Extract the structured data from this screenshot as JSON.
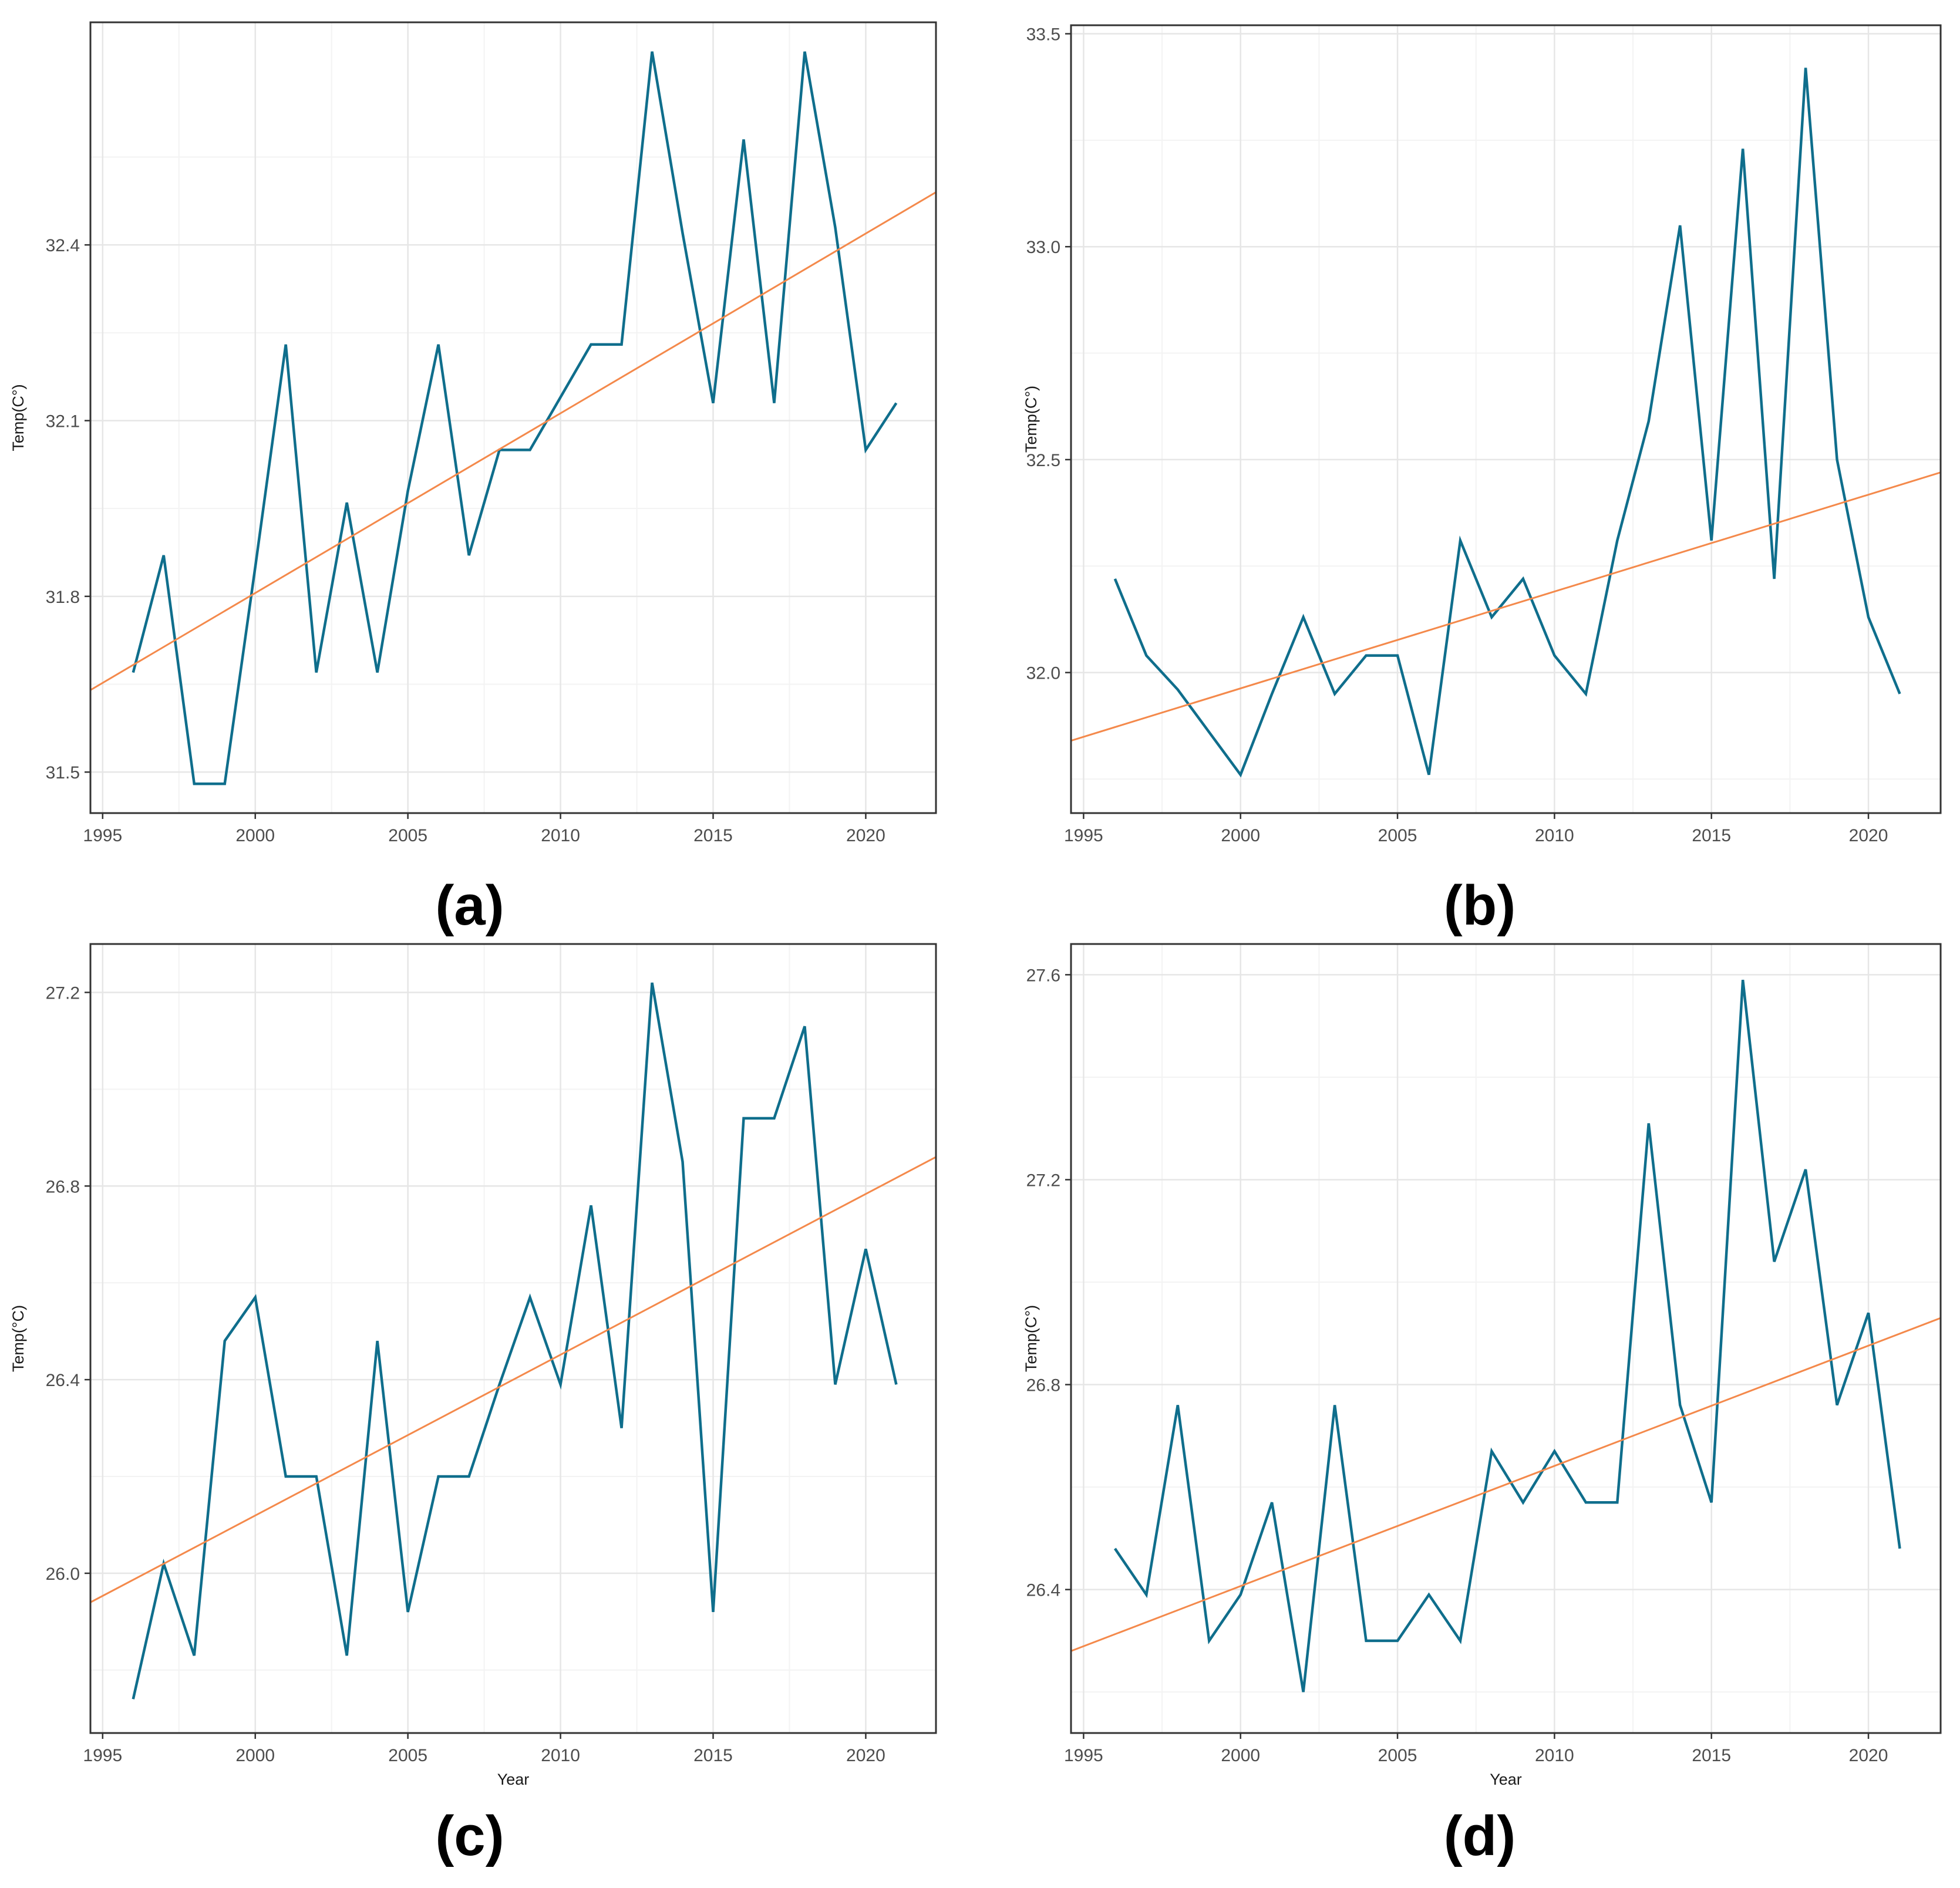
{
  "figure": {
    "colors": {
      "series_line": "#0f6e8c",
      "trend_line": "#f4894b",
      "panel_border": "#333333",
      "grid_major": "#e6e6e6",
      "grid_minor": "#f3f3f3",
      "background": "#ffffff"
    }
  },
  "chart_data": [
    {
      "panel": "(a)",
      "type": "line",
      "title": "",
      "xlabel": "",
      "ylabel": "Temp(C°)",
      "xlim": [
        1994.6,
        2022.3
      ],
      "ylim": [
        31.43,
        32.78
      ],
      "xticks": [
        1995,
        2000,
        2005,
        2010,
        2015,
        2020
      ],
      "yticks": [
        31.5,
        31.8,
        32.1,
        32.4
      ],
      "ytick_labels": [
        "31.5",
        "31.8",
        "32.1",
        "32.4"
      ],
      "grid": true,
      "series": [
        {
          "name": "Temp",
          "x": [
            1996,
            1997,
            1998,
            1999,
            2000,
            2001,
            2002,
            2003,
            2004,
            2005,
            2006,
            2007,
            2008,
            2009,
            2010,
            2011,
            2012,
            2013,
            2014,
            2015,
            2016,
            2017,
            2018,
            2019,
            2020,
            2021
          ],
          "values": [
            31.67,
            31.87,
            31.48,
            31.48,
            31.85,
            32.23,
            31.67,
            31.96,
            31.67,
            31.98,
            32.23,
            31.87,
            32.05,
            32.05,
            32.14,
            32.23,
            32.23,
            32.73,
            32.42,
            32.13,
            32.58,
            32.13,
            32.73,
            32.43,
            32.05,
            32.13
          ]
        },
        {
          "name": "Linear trend",
          "x": [
            1994.6,
            2022.3
          ],
          "values": [
            31.64,
            32.49
          ]
        }
      ]
    },
    {
      "panel": "(b)",
      "type": "line",
      "title": "",
      "xlabel": "",
      "ylabel": "Temp(C°)",
      "xlim": [
        1994.6,
        2022.3
      ],
      "ylim": [
        31.67,
        33.52
      ],
      "xticks": [
        1995,
        2000,
        2005,
        2010,
        2015,
        2020
      ],
      "yticks": [
        32.0,
        32.5,
        33.0,
        33.5
      ],
      "ytick_labels": [
        "32.0",
        "32.5",
        "33.0",
        "33.5"
      ],
      "grid": true,
      "series": [
        {
          "name": "Temp",
          "x": [
            1996,
            1997,
            1998,
            1999,
            2000,
            2001,
            2002,
            2003,
            2004,
            2005,
            2006,
            2007,
            2008,
            2009,
            2010,
            2011,
            2012,
            2013,
            2014,
            2015,
            2016,
            2017,
            2018,
            2019,
            2020,
            2021
          ],
          "values": [
            32.22,
            32.04,
            31.96,
            31.86,
            31.76,
            31.95,
            32.13,
            31.95,
            32.04,
            32.04,
            31.76,
            32.31,
            32.13,
            32.22,
            32.04,
            31.95,
            32.31,
            32.59,
            33.05,
            32.31,
            33.23,
            32.22,
            33.42,
            32.5,
            32.13,
            31.95
          ]
        },
        {
          "name": "Linear trend",
          "x": [
            1994.6,
            2022.3
          ],
          "values": [
            31.84,
            32.47
          ]
        }
      ]
    },
    {
      "panel": "(c)",
      "type": "line",
      "title": "",
      "xlabel": "Year",
      "ylabel": "Temp(°C)",
      "xlim": [
        1994.6,
        2022.3
      ],
      "ylim": [
        25.67,
        27.3
      ],
      "xticks": [
        1995,
        2000,
        2005,
        2010,
        2015,
        2020
      ],
      "yticks": [
        26.0,
        26.4,
        26.8,
        27.2
      ],
      "ytick_labels": [
        "26.0",
        "26.4",
        "26.8",
        "27.2"
      ],
      "grid": true,
      "series": [
        {
          "name": "Temp",
          "x": [
            1996,
            1997,
            1998,
            1999,
            2000,
            2001,
            2002,
            2003,
            2004,
            2005,
            2006,
            2007,
            2008,
            2009,
            2010,
            2011,
            2012,
            2013,
            2014,
            2015,
            2016,
            2017,
            2018,
            2019,
            2020,
            2021
          ],
          "values": [
            25.74,
            26.02,
            25.83,
            26.48,
            26.57,
            26.2,
            26.2,
            25.83,
            26.48,
            25.92,
            26.2,
            26.2,
            26.39,
            26.57,
            26.39,
            26.76,
            26.3,
            27.22,
            26.85,
            25.92,
            26.94,
            26.94,
            27.13,
            26.39,
            26.67,
            26.39
          ]
        },
        {
          "name": "Linear trend",
          "x": [
            1994.6,
            2022.3
          ],
          "values": [
            25.94,
            26.86
          ]
        }
      ]
    },
    {
      "panel": "(d)",
      "type": "line",
      "title": "",
      "xlabel": "Year",
      "ylabel": "Temp(C°)",
      "xlim": [
        1994.6,
        2022.3
      ],
      "ylim": [
        26.12,
        27.66
      ],
      "xticks": [
        1995,
        2000,
        2005,
        2010,
        2015,
        2020
      ],
      "yticks": [
        26.4,
        26.8,
        27.2,
        27.6
      ],
      "ytick_labels": [
        "26.4",
        "26.8",
        "27.2",
        "27.6"
      ],
      "grid": true,
      "series": [
        {
          "name": "Temp",
          "x": [
            1996,
            1997,
            1998,
            1999,
            2000,
            2001,
            2002,
            2003,
            2004,
            2005,
            2006,
            2007,
            2008,
            2009,
            2010,
            2011,
            2012,
            2013,
            2014,
            2015,
            2016,
            2017,
            2018,
            2019,
            2020,
            2021
          ],
          "values": [
            26.48,
            26.39,
            26.76,
            26.3,
            26.39,
            26.57,
            26.2,
            26.76,
            26.3,
            26.3,
            26.39,
            26.3,
            26.67,
            26.57,
            26.67,
            26.57,
            26.57,
            27.31,
            26.76,
            26.57,
            27.59,
            27.04,
            27.22,
            26.76,
            26.94,
            26.48
          ]
        },
        {
          "name": "Linear trend",
          "x": [
            1994.6,
            2022.3
          ],
          "values": [
            26.28,
            26.93
          ]
        }
      ]
    }
  ]
}
